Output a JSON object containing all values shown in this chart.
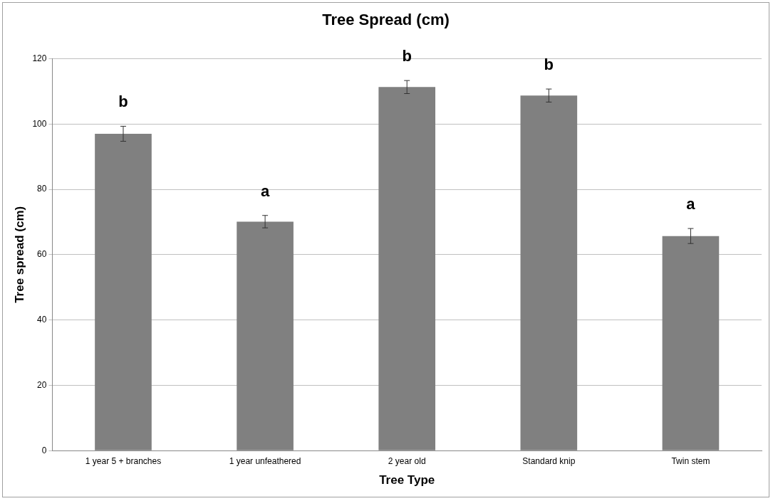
{
  "chart_data": {
    "type": "bar",
    "title": "Tree Spread (cm)",
    "xlabel": "Tree Type",
    "ylabel": "Tree spread (cm)",
    "categories": [
      "1 year 5 + branches",
      "1 year unfeathered",
      "2 year old",
      "Standard knip",
      "Twin stem"
    ],
    "values": [
      97.0,
      70.1,
      111.3,
      108.7,
      65.7
    ],
    "errors": [
      2.3,
      1.9,
      2.0,
      2.0,
      2.3
    ],
    "color": "#808080",
    "ylim": [
      0,
      120
    ],
    "yticks": [
      0,
      20,
      40,
      60,
      80,
      100,
      120
    ],
    "grid": "y",
    "legend": false,
    "annotations": [
      "b",
      "a",
      "b",
      "b",
      "a"
    ]
  }
}
